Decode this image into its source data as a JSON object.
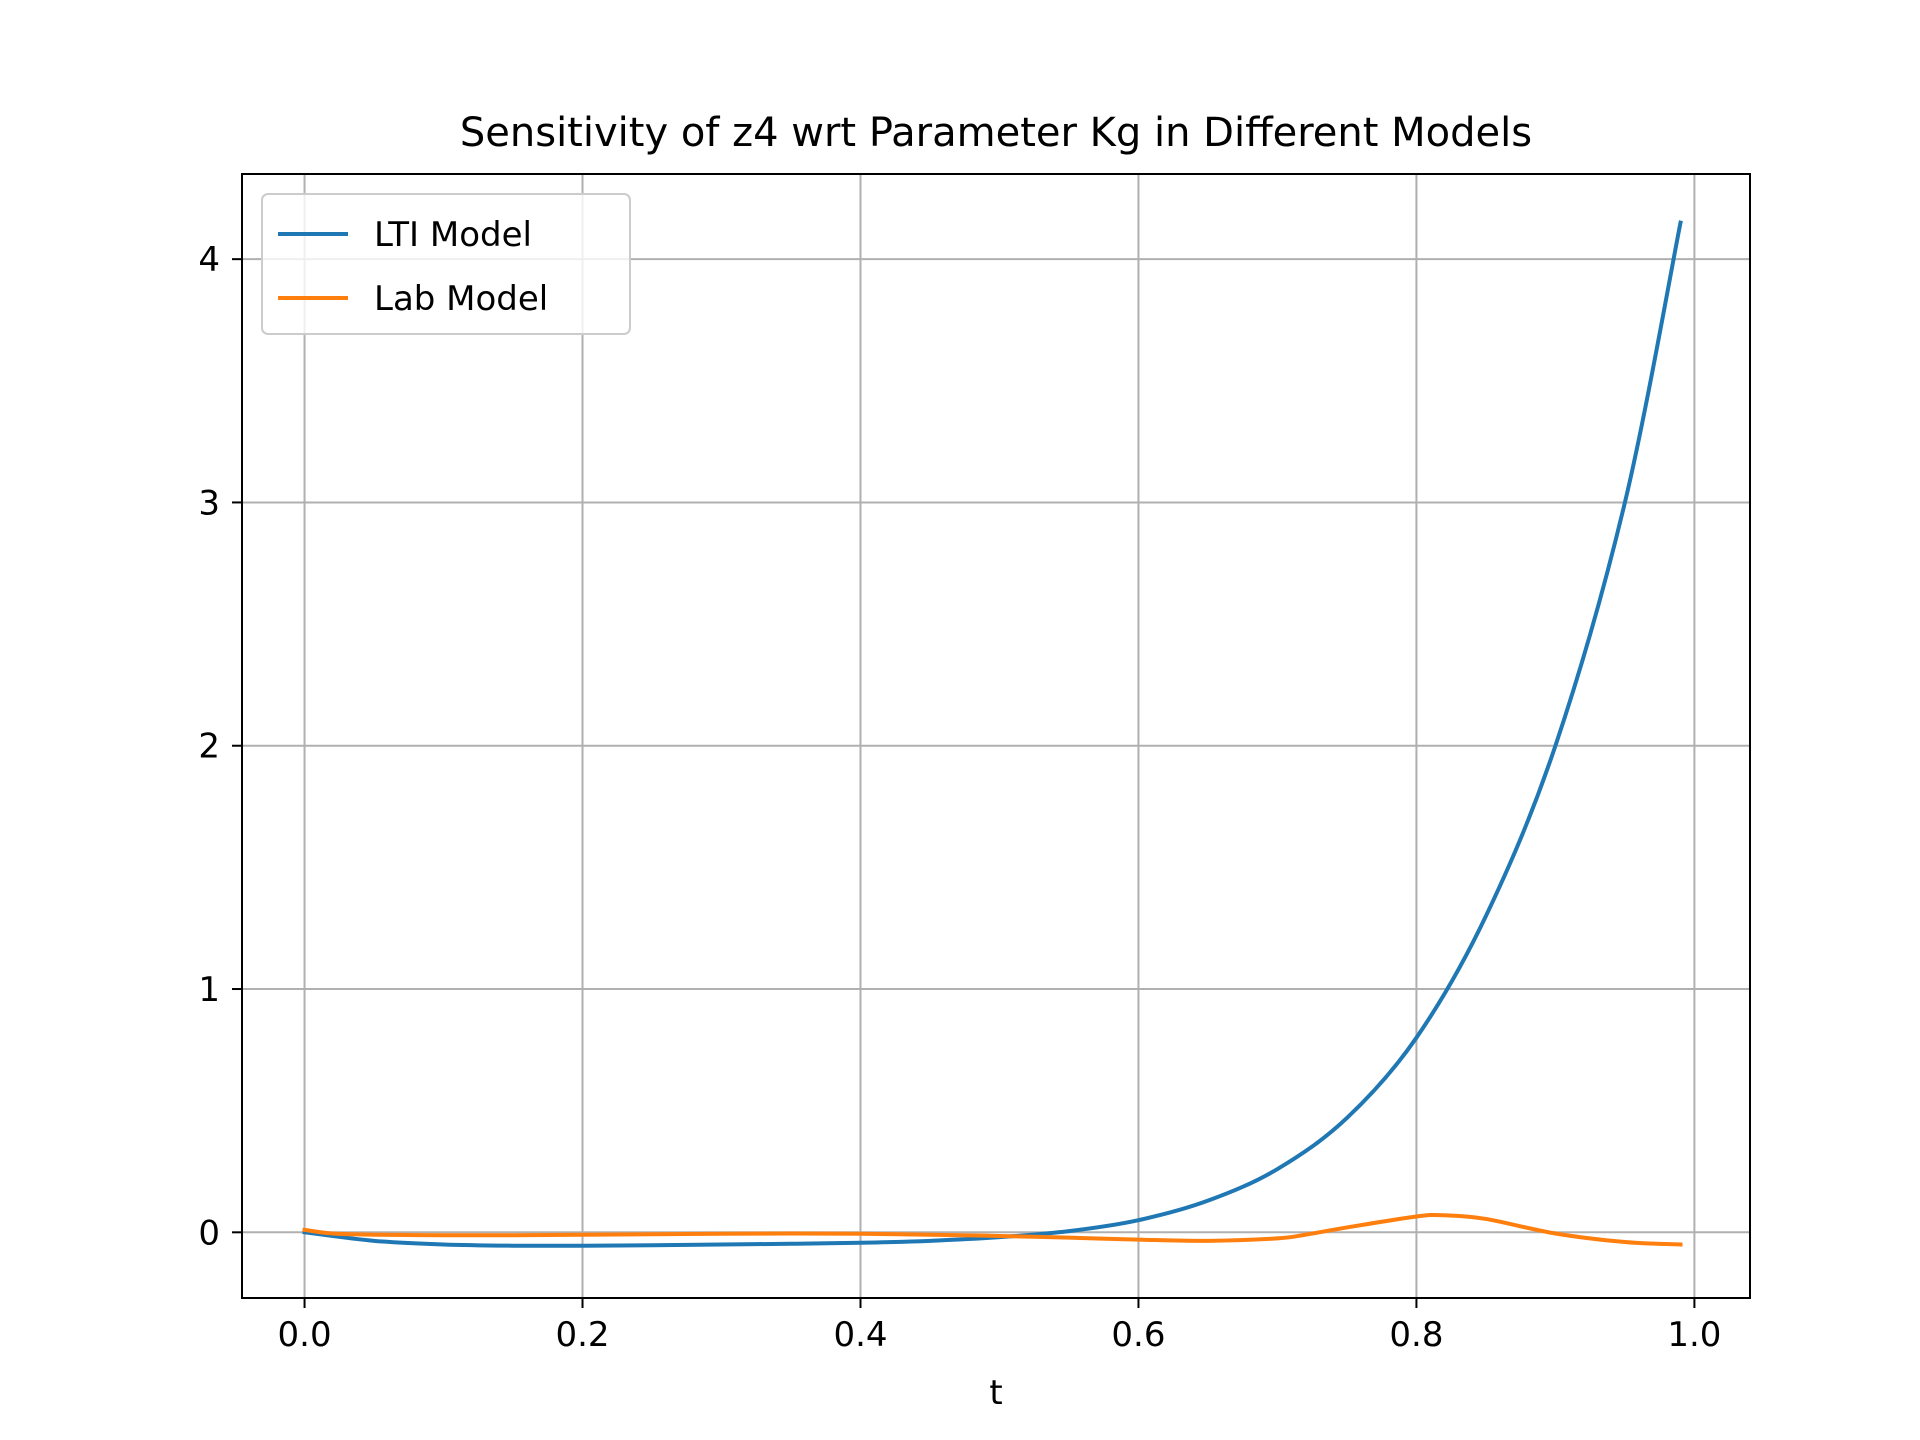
{
  "chart_data": {
    "type": "line",
    "title": "Sensitivity of z4 wrt Parameter Kg in Different Models",
    "xlabel": "t",
    "ylabel": "",
    "xlim": [
      -0.045,
      1.04
    ],
    "ylim": [
      -0.27,
      4.35
    ],
    "xticks": [
      0.0,
      0.2,
      0.4,
      0.6,
      0.8,
      1.0
    ],
    "xtick_labels": [
      "0.0",
      "0.2",
      "0.4",
      "0.6",
      "0.8",
      "1.0"
    ],
    "yticks": [
      0,
      1,
      2,
      3,
      4
    ],
    "ytick_labels": [
      "0",
      "1",
      "2",
      "3",
      "4"
    ],
    "grid": true,
    "legend_position": "top-left",
    "series": [
      {
        "name": "LTI Model",
        "color": "#1f77b4",
        "x": [
          0.0,
          0.05,
          0.1,
          0.15,
          0.2,
          0.25,
          0.3,
          0.35,
          0.4,
          0.45,
          0.5,
          0.55,
          0.6,
          0.65,
          0.7,
          0.75,
          0.8,
          0.85,
          0.9,
          0.95,
          0.99
        ],
        "y": [
          0.0,
          -0.035,
          -0.05,
          -0.055,
          -0.055,
          -0.053,
          -0.05,
          -0.047,
          -0.043,
          -0.035,
          -0.02,
          0.005,
          0.05,
          0.13,
          0.26,
          0.47,
          0.8,
          1.3,
          2.0,
          3.0,
          4.15
        ]
      },
      {
        "name": "Lab Model",
        "color": "#ff7f0e",
        "x": [
          0.0,
          0.02,
          0.05,
          0.1,
          0.15,
          0.2,
          0.25,
          0.3,
          0.35,
          0.4,
          0.45,
          0.5,
          0.55,
          0.6,
          0.65,
          0.7,
          0.72,
          0.75,
          0.8,
          0.82,
          0.85,
          0.9,
          0.95,
          0.99
        ],
        "y": [
          0.01,
          -0.005,
          -0.01,
          -0.012,
          -0.012,
          -0.01,
          -0.008,
          -0.006,
          -0.005,
          -0.006,
          -0.01,
          -0.015,
          -0.022,
          -0.03,
          -0.035,
          -0.025,
          -0.01,
          0.02,
          0.065,
          0.07,
          0.055,
          -0.005,
          -0.04,
          -0.05
        ]
      }
    ]
  }
}
